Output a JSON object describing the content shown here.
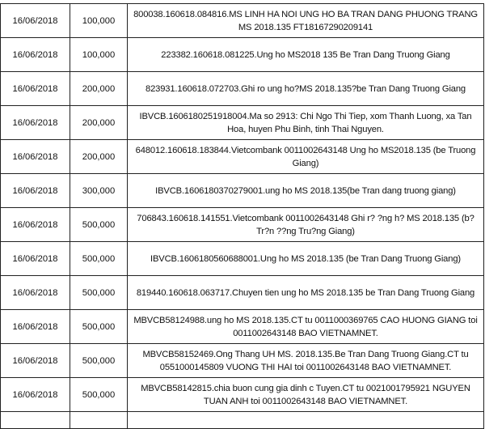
{
  "rows": [
    {
      "date": "16/06/2018",
      "amount": "100,000",
      "description": "800038.160618.084816.MS LINH HA NOI UNG HO BA TRAN DANG PHUONG TRANG MS 2018.135 FT18167290209141"
    },
    {
      "date": "16/06/2018",
      "amount": "100,000",
      "description": "223382.160618.081225.Ung ho MS2018 135 Be Tran Dang Truong Giang"
    },
    {
      "date": "16/06/2018",
      "amount": "200,000",
      "description": "823931.160618.072703.Ghi ro ung ho?MS 2018.135?be Tran Dang Truong Giang"
    },
    {
      "date": "16/06/2018",
      "amount": "200,000",
      "description": "IBVCB.1606180251918004.Ma so 2913: Chi Ngo Thi Tiep, xom Thanh Luong, xa Tan Hoa, huyen Phu Binh, tinh Thai Nguyen."
    },
    {
      "date": "16/06/2018",
      "amount": "200,000",
      "description": "648012.160618.183844.Vietcombank 0011002643148 Ung ho MS2018.135 (be Truong Giang)"
    },
    {
      "date": "16/06/2018",
      "amount": "300,000",
      "description": "IBVCB.1606180370279001.ung ho MS 2018.135(be Tran dang truong giang)"
    },
    {
      "date": "16/06/2018",
      "amount": "500,000",
      "description": "706843.160618.141551.Vietcombank 0011002643148 Ghi r? ?ng h? MS 2018.135 (b? Tr?n ??ng Tru?ng Giang)"
    },
    {
      "date": "16/06/2018",
      "amount": "500,000",
      "description": "IBVCB.1606180560688001.Ung ho MS 2018.135 (be Tran Dang Truong Giang)"
    },
    {
      "date": "16/06/2018",
      "amount": "500,000",
      "description": "819440.160618.063717.Chuyen tien ung ho MS 2018.135 be Tran Dang Truong Giang"
    },
    {
      "date": "16/06/2018",
      "amount": "500,000",
      "description": "MBVCB58124988.ung ho MS 2018.135.CT tu 0011000369765 CAO HUONG GIANG toi 0011002643148 BAO VIETNAMNET."
    },
    {
      "date": "16/06/2018",
      "amount": "500,000",
      "description": "MBVCB58152469.Ong Thang UH MS. 2018.135.Be Tran Dang Truong Giang.CT tu 0551000145809 VUONG THI HAI toi 0011002643148 BAO VIETNAMNET."
    },
    {
      "date": "16/06/2018",
      "amount": "500,000",
      "description": "MBVCB58142815.chia buon cung gia dinh c Tuyen.CT tu 0021001795921 NGUYEN TUAN ANH toi 0011002643148 BAO VIETNAMNET."
    }
  ]
}
